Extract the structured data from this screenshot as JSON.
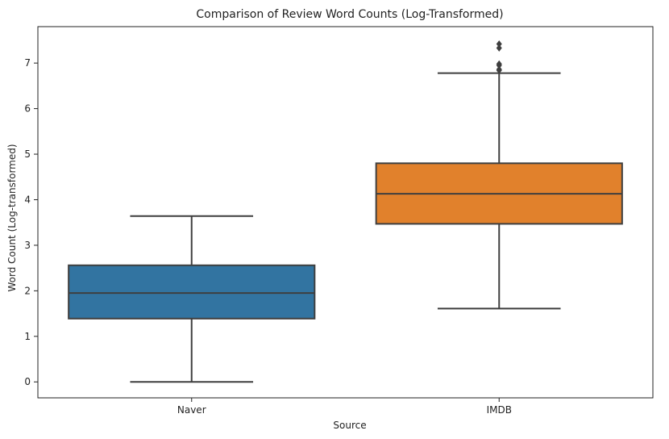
{
  "chart_data": {
    "type": "box",
    "title": "Comparison of Review Word Counts (Log-Transformed)",
    "xlabel": "Source",
    "ylabel": "Word Count (Log-transformed)",
    "categories": [
      "Naver",
      "IMDB"
    ],
    "ylim": [
      -0.35,
      7.8
    ],
    "yticks": [
      0,
      1,
      2,
      3,
      4,
      5,
      6,
      7
    ],
    "grid": false,
    "boxes": [
      {
        "category": "Naver",
        "whisker_low": 0.0,
        "q1": 1.39,
        "median": 1.95,
        "q3": 2.56,
        "whisker_high": 3.64,
        "outliers": [],
        "color": "#3274a1"
      },
      {
        "category": "IMDB",
        "whisker_low": 1.61,
        "q1": 3.47,
        "median": 4.13,
        "q3": 4.8,
        "whisker_high": 6.78,
        "outliers": [
          6.84,
          6.86,
          6.95,
          6.98,
          7.33,
          7.42
        ],
        "color": "#e1812c"
      }
    ],
    "line_color": "#3f3f3f"
  }
}
